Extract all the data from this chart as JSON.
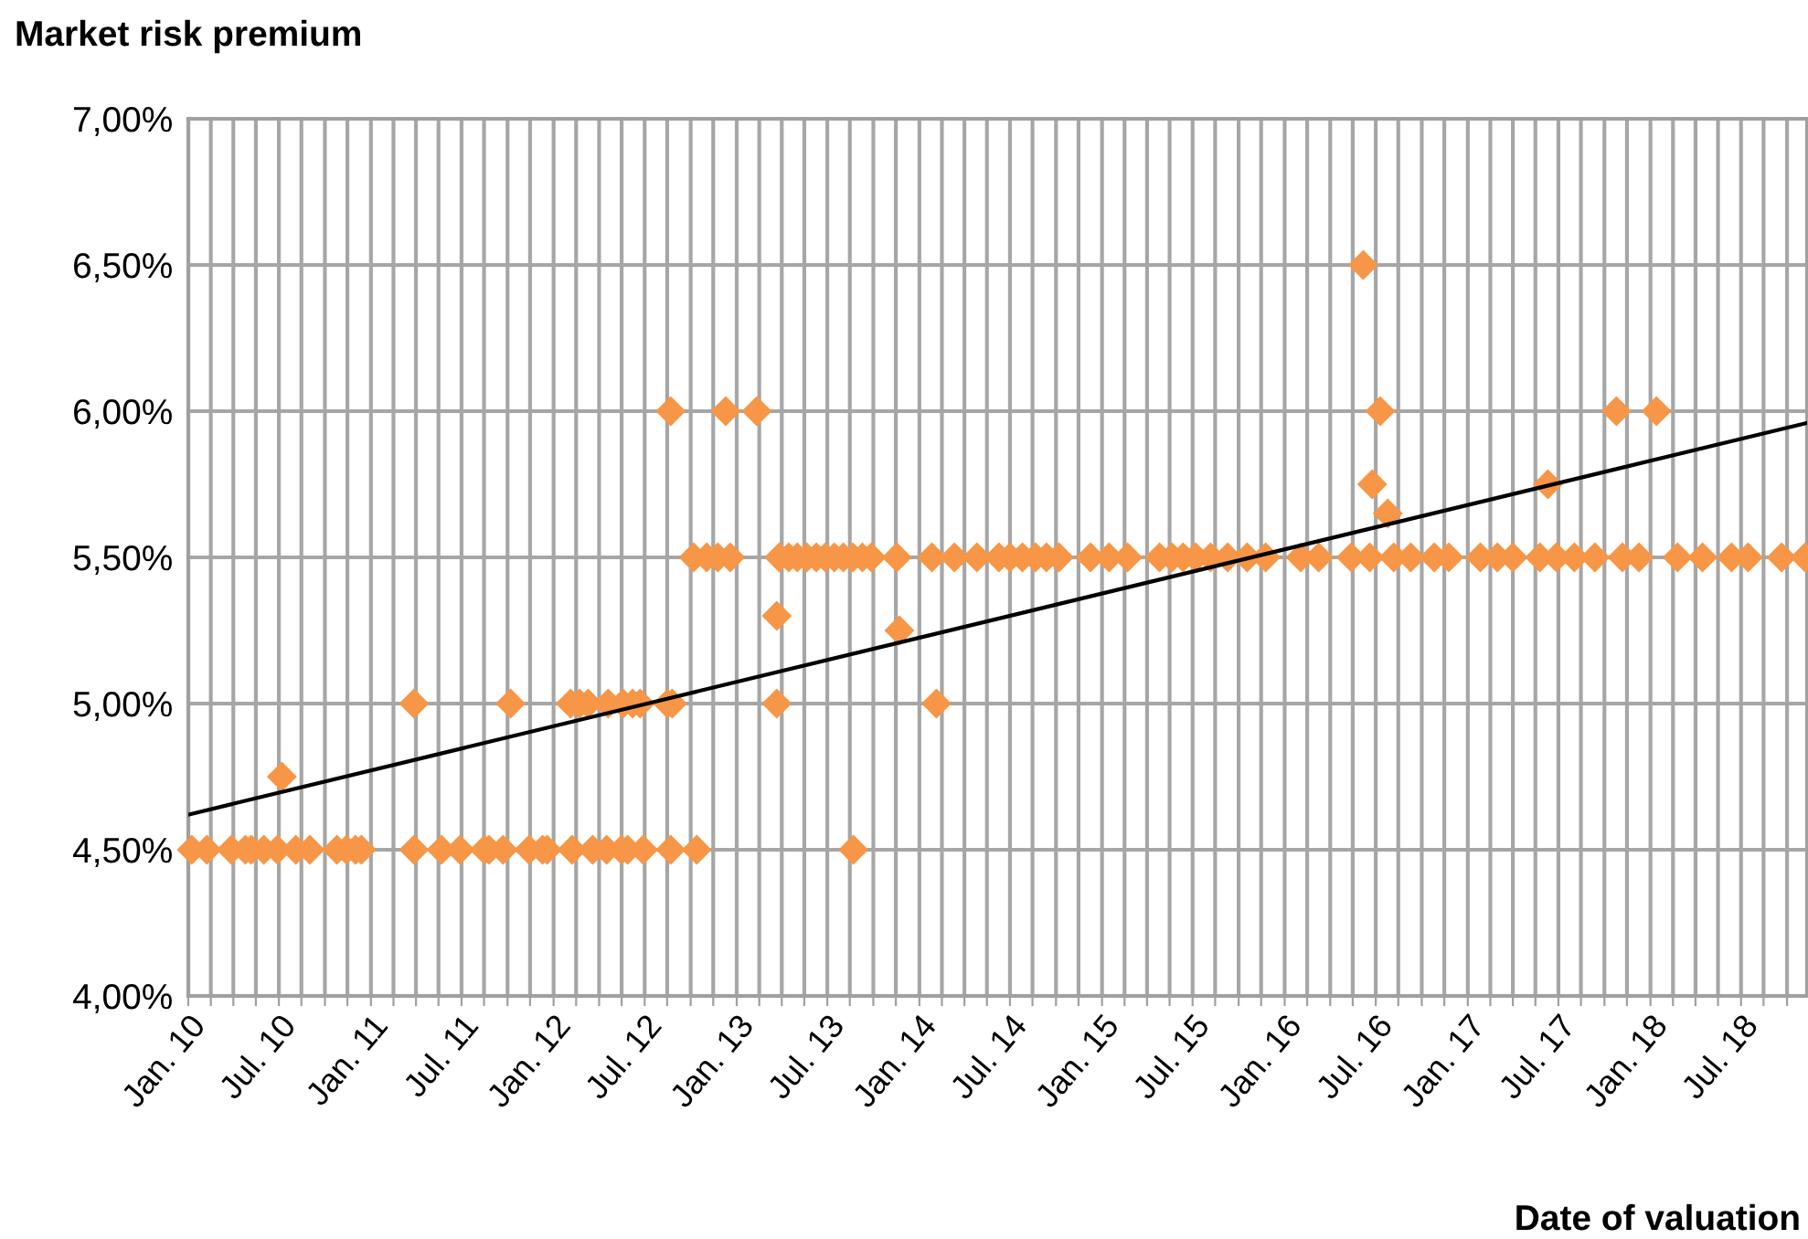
{
  "chart_data": {
    "type": "scatter",
    "ylabel": "Market risk premium",
    "xlabel": "Date of valuation",
    "marker": "diamond",
    "grid": true,
    "legend": false,
    "xlim": [
      "2010-01-01",
      "2018-11-10"
    ],
    "xticks": [
      {
        "value": "2010-01-01",
        "label": "Jan. 10"
      },
      {
        "value": "2010-02-15",
        "label": null
      },
      {
        "value": "2010-04-01",
        "label": null
      },
      {
        "value": "2010-05-16",
        "label": null
      },
      {
        "value": "2010-07-01",
        "label": "Jul. 10"
      },
      {
        "value": "2010-08-15",
        "label": null
      },
      {
        "value": "2010-10-01",
        "label": null
      },
      {
        "value": "2010-11-15",
        "label": null
      },
      {
        "value": "2011-01-01",
        "label": "Jan. 11"
      },
      {
        "value": "2011-02-15",
        "label": null
      },
      {
        "value": "2011-04-01",
        "label": null
      },
      {
        "value": "2011-05-16",
        "label": null
      },
      {
        "value": "2011-07-01",
        "label": "Jul. 11"
      },
      {
        "value": "2011-08-15",
        "label": null
      },
      {
        "value": "2011-10-01",
        "label": null
      },
      {
        "value": "2011-11-15",
        "label": null
      },
      {
        "value": "2012-01-01",
        "label": "Jan. 12"
      },
      {
        "value": "2012-02-15",
        "label": null
      },
      {
        "value": "2012-04-01",
        "label": null
      },
      {
        "value": "2012-05-16",
        "label": null
      },
      {
        "value": "2012-07-01",
        "label": "Jul. 12"
      },
      {
        "value": "2012-08-15",
        "label": null
      },
      {
        "value": "2012-10-01",
        "label": null
      },
      {
        "value": "2012-11-15",
        "label": null
      },
      {
        "value": "2013-01-01",
        "label": "Jan. 13"
      },
      {
        "value": "2013-02-15",
        "label": null
      },
      {
        "value": "2013-04-01",
        "label": null
      },
      {
        "value": "2013-05-16",
        "label": null
      },
      {
        "value": "2013-07-01",
        "label": "Jul. 13"
      },
      {
        "value": "2013-08-15",
        "label": null
      },
      {
        "value": "2013-10-01",
        "label": null
      },
      {
        "value": "2013-11-15",
        "label": null
      },
      {
        "value": "2014-01-01",
        "label": "Jan. 14"
      },
      {
        "value": "2014-02-15",
        "label": null
      },
      {
        "value": "2014-04-01",
        "label": null
      },
      {
        "value": "2014-05-16",
        "label": null
      },
      {
        "value": "2014-07-01",
        "label": "Jul. 14"
      },
      {
        "value": "2014-08-15",
        "label": null
      },
      {
        "value": "2014-10-01",
        "label": null
      },
      {
        "value": "2014-11-15",
        "label": null
      },
      {
        "value": "2015-01-01",
        "label": "Jan. 15"
      },
      {
        "value": "2015-02-15",
        "label": null
      },
      {
        "value": "2015-04-01",
        "label": null
      },
      {
        "value": "2015-05-16",
        "label": null
      },
      {
        "value": "2015-07-01",
        "label": "Jul. 15"
      },
      {
        "value": "2015-08-15",
        "label": null
      },
      {
        "value": "2015-10-01",
        "label": null
      },
      {
        "value": "2015-11-15",
        "label": null
      },
      {
        "value": "2016-01-01",
        "label": "Jan. 16"
      },
      {
        "value": "2016-02-15",
        "label": null
      },
      {
        "value": "2016-04-01",
        "label": null
      },
      {
        "value": "2016-05-16",
        "label": null
      },
      {
        "value": "2016-07-01",
        "label": "Jul. 16"
      },
      {
        "value": "2016-08-15",
        "label": null
      },
      {
        "value": "2016-10-01",
        "label": null
      },
      {
        "value": "2016-11-15",
        "label": null
      },
      {
        "value": "2017-01-01",
        "label": "Jan. 17"
      },
      {
        "value": "2017-02-15",
        "label": null
      },
      {
        "value": "2017-04-01",
        "label": null
      },
      {
        "value": "2017-05-16",
        "label": null
      },
      {
        "value": "2017-07-01",
        "label": "Jul. 17"
      },
      {
        "value": "2017-08-15",
        "label": null
      },
      {
        "value": "2017-10-01",
        "label": null
      },
      {
        "value": "2017-11-15",
        "label": null
      },
      {
        "value": "2018-01-01",
        "label": "Jan. 18"
      },
      {
        "value": "2018-02-15",
        "label": null
      },
      {
        "value": "2018-04-01",
        "label": null
      },
      {
        "value": "2018-05-16",
        "label": null
      },
      {
        "value": "2018-07-01",
        "label": "Jul. 18"
      },
      {
        "value": "2018-08-15",
        "label": null
      },
      {
        "value": "2018-10-01",
        "label": null
      }
    ],
    "ylim": [
      4.0,
      7.0
    ],
    "yticks": [
      {
        "value": 4.0,
        "label": "4,00%"
      },
      {
        "value": 4.5,
        "label": "4,50%"
      },
      {
        "value": 5.0,
        "label": "5,00%"
      },
      {
        "value": 5.5,
        "label": "5,50%"
      },
      {
        "value": 6.0,
        "label": "6,00%"
      },
      {
        "value": 6.5,
        "label": "6,50%"
      },
      {
        "value": 7.0,
        "label": "7,00%"
      }
    ],
    "series": [
      {
        "color": "#f79646",
        "x": [
          "2010-01-08",
          "2010-02-07",
          "2010-03-28",
          "2010-04-25",
          "2010-05-07",
          "2010-06-01",
          "2010-06-28",
          "2010-08-04",
          "2010-09-01",
          "2010-10-25",
          "2010-11-13",
          "2010-12-01",
          "2010-12-13",
          "2011-03-28",
          "2011-05-22",
          "2011-06-28",
          "2011-08-16",
          "2011-08-25",
          "2011-09-22",
          "2011-11-13",
          "2011-12-10",
          "2011-12-19",
          "2012-02-07",
          "2012-03-19",
          "2012-04-16",
          "2012-05-16",
          "2012-05-28",
          "2012-06-28",
          "2012-08-22",
          "2012-10-13",
          "2013-08-22",
          "2010-07-07",
          "2011-03-28",
          "2011-10-07",
          "2012-02-04",
          "2012-02-22",
          "2012-03-10",
          "2012-04-19",
          "2012-05-19",
          "2012-06-07",
          "2012-06-22",
          "2012-08-16",
          "2012-08-25",
          "2013-03-22",
          "2014-02-04",
          "2013-11-22",
          "2013-03-22",
          "2012-10-07",
          "2012-11-02",
          "2012-11-24",
          "2012-12-19",
          "2013-03-27",
          "2013-04-15",
          "2013-05-02",
          "2013-05-21",
          "2013-06-09",
          "2013-06-27",
          "2013-07-15",
          "2013-08-02",
          "2013-08-21",
          "2013-09-09",
          "2013-09-27",
          "2013-11-17",
          "2014-01-26",
          "2014-03-12",
          "2014-04-26",
          "2014-06-09",
          "2014-07-01",
          "2014-07-26",
          "2014-08-21",
          "2014-09-12",
          "2014-10-07",
          "2014-12-09",
          "2015-01-15",
          "2015-02-21",
          "2015-04-26",
          "2015-05-21",
          "2015-06-12",
          "2015-07-07",
          "2015-08-06",
          "2015-09-09",
          "2015-10-18",
          "2015-11-24",
          "2016-02-02",
          "2016-03-09",
          "2016-05-13",
          "2016-06-19",
          "2016-08-06",
          "2016-09-09",
          "2016-10-26",
          "2016-11-24",
          "2017-01-26",
          "2017-03-01",
          "2017-04-01",
          "2017-05-25",
          "2017-06-27",
          "2017-08-02",
          "2017-09-12",
          "2017-11-06",
          "2017-12-09",
          "2018-02-24",
          "2018-04-15",
          "2018-06-12",
          "2018-07-15",
          "2018-09-20",
          "2018-11-06",
          "2016-06-24",
          "2016-07-25",
          "2017-06-10",
          "2012-08-22",
          "2012-12-10",
          "2013-02-10",
          "2016-07-10",
          "2017-10-25",
          "2018-01-13",
          "2016-06-06"
        ],
        "values": [
          4.5,
          4.5,
          4.5,
          4.5,
          4.5,
          4.5,
          4.5,
          4.5,
          4.5,
          4.5,
          4.5,
          4.5,
          4.5,
          4.5,
          4.5,
          4.5,
          4.5,
          4.5,
          4.5,
          4.5,
          4.5,
          4.5,
          4.5,
          4.5,
          4.5,
          4.5,
          4.5,
          4.5,
          4.5,
          4.5,
          4.5,
          4.75,
          5.0,
          5.0,
          5.0,
          5.0,
          5.0,
          5.0,
          5.0,
          5.0,
          5.0,
          5.0,
          5.0,
          5.0,
          5.0,
          5.25,
          5.3,
          5.5,
          5.5,
          5.5,
          5.5,
          5.5,
          5.5,
          5.5,
          5.5,
          5.5,
          5.5,
          5.5,
          5.5,
          5.5,
          5.5,
          5.5,
          5.5,
          5.5,
          5.5,
          5.5,
          5.5,
          5.5,
          5.5,
          5.5,
          5.5,
          5.5,
          5.5,
          5.5,
          5.5,
          5.5,
          5.5,
          5.5,
          5.5,
          5.5,
          5.5,
          5.5,
          5.5,
          5.5,
          5.5,
          5.5,
          5.5,
          5.5,
          5.5,
          5.5,
          5.5,
          5.5,
          5.5,
          5.5,
          5.5,
          5.5,
          5.5,
          5.5,
          5.5,
          5.5,
          5.5,
          5.5,
          5.5,
          5.5,
          5.5,
          5.5,
          5.75,
          5.65,
          5.75,
          6.0,
          6.0,
          6.0,
          6.0,
          6.0,
          6.0,
          6.5
        ]
      },
      {
        "type": "line",
        "color": "#000000",
        "marker": "none",
        "line_style": "solid",
        "x": [
          "2010-01-01",
          "2018-11-10"
        ],
        "values": [
          4.62,
          5.96
        ]
      }
    ]
  }
}
